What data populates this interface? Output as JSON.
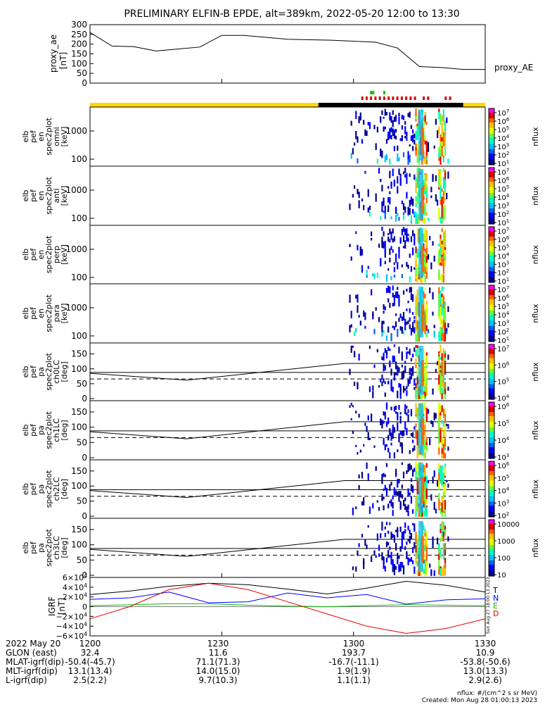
{
  "title": "PRELIMINARY ELFIN-B EPDE, alt=389km, 2022-05-20 12:00 to 13:30",
  "sideStamp": "Sun Aug 27 18:00:13 2023",
  "footer": {
    "units": "nflux: #/(cm^2 s sr MeV)",
    "created": "Created: Mon Aug 28 01:00:13 2023"
  },
  "colors": {
    "yellow": "#ffd800",
    "black": "#000000",
    "red": "#e00000",
    "green": "#00c800",
    "blue": "#0000ff",
    "T": "#000000",
    "N": "#0000ff",
    "E": "#00c000",
    "D": "#e00000"
  },
  "chart_data": [
    {
      "type": "line",
      "name": "proxy_ae",
      "ylabel": "proxy_ae [nT]",
      "yticks": [
        "300",
        "250",
        "200",
        "150",
        "100",
        "50",
        "0"
      ],
      "ylim": [
        0,
        300
      ],
      "legend": "proxy_AE",
      "x_minutes": [
        0,
        5,
        10,
        15,
        20,
        25,
        30,
        35,
        45,
        55,
        60,
        65,
        70,
        75,
        80,
        85,
        90
      ],
      "values": [
        260,
        190,
        187,
        165,
        175,
        185,
        245,
        245,
        225,
        220,
        215,
        210,
        180,
        85,
        80,
        70,
        70
      ]
    },
    {
      "type": "status_bar",
      "segments": [
        {
          "color": "yellow",
          "from": 0,
          "to": 52
        },
        {
          "color": "black",
          "from": 52,
          "to": 85
        },
        {
          "color": "yellow",
          "from": 85,
          "to": 90
        }
      ],
      "red_marks_minutes": [
        62,
        63,
        64,
        65,
        66,
        67,
        68,
        69,
        70,
        71,
        72,
        73,
        74,
        76,
        77,
        81,
        82
      ],
      "green_marks_minutes": [
        64,
        64.5,
        67
      ]
    },
    {
      "type": "heatmap",
      "ylabel": [
        "elb",
        "pef",
        "en",
        "spec2plot",
        "omni",
        "[keV]"
      ],
      "yticks": [
        "1000",
        "100"
      ],
      "colorbar": "nflux",
      "cbar_ticks": [
        "10^7",
        "10^6",
        "10^5",
        "10^4",
        "10^3",
        "10^2",
        "10^1"
      ]
    },
    {
      "type": "heatmap",
      "ylabel": [
        "elb",
        "pef",
        "en",
        "spec2plot",
        "anti",
        "[keV]"
      ],
      "yticks": [
        "1000",
        "100"
      ],
      "colorbar": "nflux",
      "cbar_ticks": [
        "10^7",
        "10^6",
        "10^5",
        "10^4",
        "10^3",
        "10^2",
        "10^1"
      ]
    },
    {
      "type": "heatmap",
      "ylabel": [
        "elb",
        "pef",
        "en",
        "spec2plot",
        "perp",
        "[keV]"
      ],
      "yticks": [
        "1000",
        "100"
      ],
      "colorbar": "nflux",
      "cbar_ticks": [
        "10^7",
        "10^6",
        "10^5",
        "10^4",
        "10^3",
        "10^2",
        "10^1"
      ]
    },
    {
      "type": "heatmap",
      "ylabel": [
        "elb",
        "pef",
        "en",
        "spec2plot",
        "para",
        "[keV]"
      ],
      "yticks": [
        "1000",
        "100"
      ],
      "colorbar": "nflux",
      "cbar_ticks": [
        "10^7",
        "10^6",
        "10^5",
        "10^4",
        "10^3",
        "10^2",
        "10^1"
      ]
    },
    {
      "type": "heatmap",
      "ylabel": [
        "elb",
        "pef",
        "pa",
        "spec2plot",
        "ch0LC",
        "[deg]"
      ],
      "yticks": [
        "150",
        "100",
        "50",
        "0"
      ],
      "colorbar": "nflux",
      "cbar_ticks": [
        "10^7",
        "10^6",
        "10^5",
        "10^4"
      ]
    },
    {
      "type": "heatmap",
      "ylabel": [
        "elb",
        "pef",
        "pa",
        "spec2plot",
        "ch1LC",
        "[deg]"
      ],
      "yticks": [
        "150",
        "100",
        "50",
        "0"
      ],
      "colorbar": "nflux",
      "cbar_ticks": [
        "10^6",
        "10^5",
        "10^4",
        "10^3"
      ]
    },
    {
      "type": "heatmap",
      "ylabel": [
        "elb",
        "pef",
        "pa",
        "spec2plot",
        "ch2LC",
        "[deg]"
      ],
      "yticks": [
        "150",
        "100",
        "50",
        "0"
      ],
      "colorbar": "nflux",
      "cbar_ticks": [
        "10^6",
        "10^5",
        "10^4",
        "10^3",
        "10^2"
      ]
    },
    {
      "type": "heatmap",
      "ylabel": [
        "elb",
        "pef",
        "pa",
        "spec2plot",
        "ch3LC",
        "[deg]"
      ],
      "yticks": [
        "150",
        "100",
        "50",
        "0"
      ],
      "colorbar": "nflux",
      "cbar_ticks": [
        "10000",
        "1000",
        "100",
        "10"
      ]
    },
    {
      "type": "line",
      "ylabel": "IGRF [nT]",
      "yticks": [
        "6×10^4",
        "4×10^4",
        "2×10^4",
        "0",
        "−2×10^4",
        "−4×10^4",
        "−6×10^4"
      ],
      "ylim": [
        -60000,
        60000
      ],
      "legend": [
        "T",
        "N",
        "E",
        "D"
      ],
      "series": [
        {
          "name": "T",
          "values": [
            25000,
            32000,
            42000,
            48000,
            45000,
            36000,
            26000,
            38000,
            52000,
            44000,
            30000
          ]
        },
        {
          "name": "N",
          "values": [
            15000,
            18000,
            30000,
            8000,
            10000,
            28000,
            18000,
            25000,
            5000,
            14000,
            16000
          ]
        },
        {
          "name": "E",
          "values": [
            2000,
            4000,
            6000,
            6000,
            3000,
            1000,
            0,
            2000,
            4000,
            3000,
            2000
          ]
        },
        {
          "name": "D",
          "values": [
            -25000,
            0,
            35000,
            48000,
            35000,
            10000,
            -15000,
            -40000,
            -55000,
            -45000,
            -25000
          ]
        }
      ]
    }
  ],
  "axis": {
    "rows": [
      {
        "label": "2022 May 20",
        "values": [
          "1200",
          "1230",
          "1300",
          "1330"
        ]
      },
      {
        "label": "GLON (east)",
        "values": [
          "32.4",
          "11.6",
          "193.7",
          "10.9"
        ]
      },
      {
        "label": "MLAT-igrf(dip)",
        "values": [
          "-50.4(-45.7)",
          "71.1(71.3)",
          "-16.7(-11.1)",
          "-53.8(-50.6)"
        ]
      },
      {
        "label": "MLT-igrf(dip)",
        "values": [
          "13.1(13.4)",
          "14.0(15.0)",
          "1.9(1.9)",
          "13.0(13.3)"
        ]
      },
      {
        "label": "L-igrf(dip)",
        "values": [
          "2.5(2.2)",
          "9.7(10.3)",
          "1.1(1.1)",
          "2.9(2.6)"
        ]
      }
    ]
  }
}
